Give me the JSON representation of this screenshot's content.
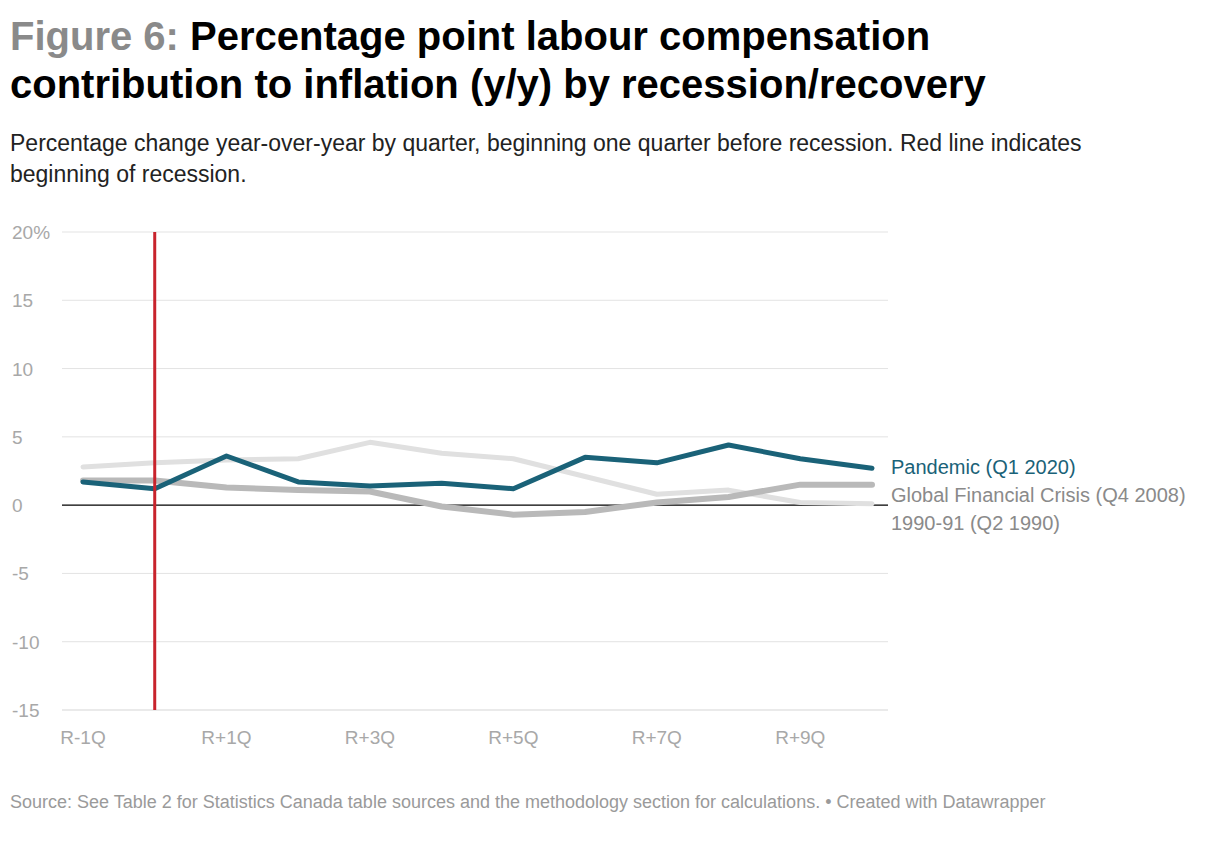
{
  "chart_data": {
    "type": "line",
    "title": "Figure 6: Percentage point labour compensation contribution to inflation (y/y) by recession/recovery",
    "subtitle": "Percentage change year-over-year by quarter, beginning one quarter before recession. Red line indicates beginning of recession.",
    "source": "Source: See Table 2 for Statistics Canada table sources and the methodology section for calculations. • Created with Datawrapper",
    "categories": [
      "R-1Q",
      null,
      "R+1Q",
      null,
      "R+3Q",
      null,
      "R+5Q",
      null,
      "R+7Q",
      null,
      "R+9Q",
      null
    ],
    "recession_start_index": 1,
    "series": [
      {
        "name": "1990-91 (Q2 1990)",
        "color": "#e0e0e0",
        "values": [
          2.8,
          3.1,
          3.3,
          3.4,
          4.6,
          3.8,
          3.4,
          2.1,
          0.8,
          1.1,
          0.2,
          0.1
        ]
      },
      {
        "name": "Global Financial Crisis (Q4 2008)",
        "color": "#b9b9b9",
        "values": [
          1.8,
          1.8,
          1.3,
          1.1,
          1.0,
          -0.1,
          -0.7,
          -0.5,
          0.2,
          0.6,
          1.5,
          1.5
        ]
      },
      {
        "name": "Pandemic (Q1 2020)",
        "color": "#1a6278",
        "values": [
          1.7,
          1.2,
          3.6,
          1.7,
          1.4,
          1.6,
          1.2,
          3.5,
          3.1,
          4.4,
          3.4,
          2.7
        ]
      }
    ],
    "ylim": [
      -15,
      20
    ],
    "yticks": [
      -15,
      -10,
      -5,
      0,
      5,
      10,
      15,
      {
        "value": 20,
        "label": "20%"
      }
    ],
    "grid": true
  }
}
